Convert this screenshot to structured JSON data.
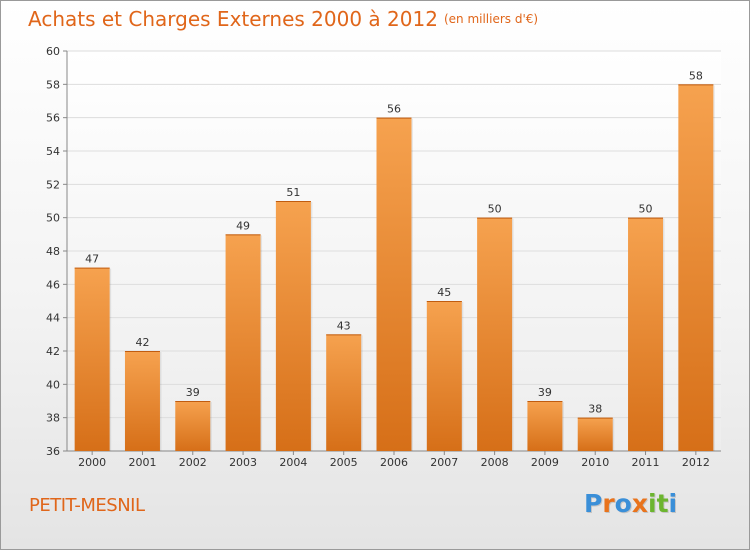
{
  "header": {
    "title": "Achats et Charges Externes 2000 à 2012",
    "unit": "(en milliers d'€)"
  },
  "footer": {
    "commune": "PETIT-MESNIL",
    "logo": "Proxiti",
    "logo_colors": [
      "#3a8fd8",
      "#e8731c",
      "#3a8fd8",
      "#e8731c",
      "#6cb52f",
      "#6cb52f",
      "#3a8fd8"
    ]
  },
  "colors": {
    "bar_top": "#f6a24f",
    "bar_bottom": "#d66f18",
    "title": "#e0661a",
    "grid": "#dddddd"
  },
  "chart_data": {
    "type": "bar",
    "title": "Achats et Charges Externes 2000 à 2012",
    "subtitle": "(en milliers d'€)",
    "categories": [
      "2000",
      "2001",
      "2002",
      "2003",
      "2004",
      "2005",
      "2006",
      "2007",
      "2008",
      "2009",
      "2010",
      "2011",
      "2012"
    ],
    "values": [
      47,
      42,
      39,
      49,
      51,
      43,
      56,
      45,
      50,
      39,
      38,
      50,
      58
    ],
    "ylim": [
      36,
      60
    ],
    "yticks": [
      36,
      38,
      40,
      42,
      44,
      46,
      48,
      50,
      52,
      54,
      56,
      58,
      60
    ],
    "grid": true,
    "data_labels": true
  }
}
